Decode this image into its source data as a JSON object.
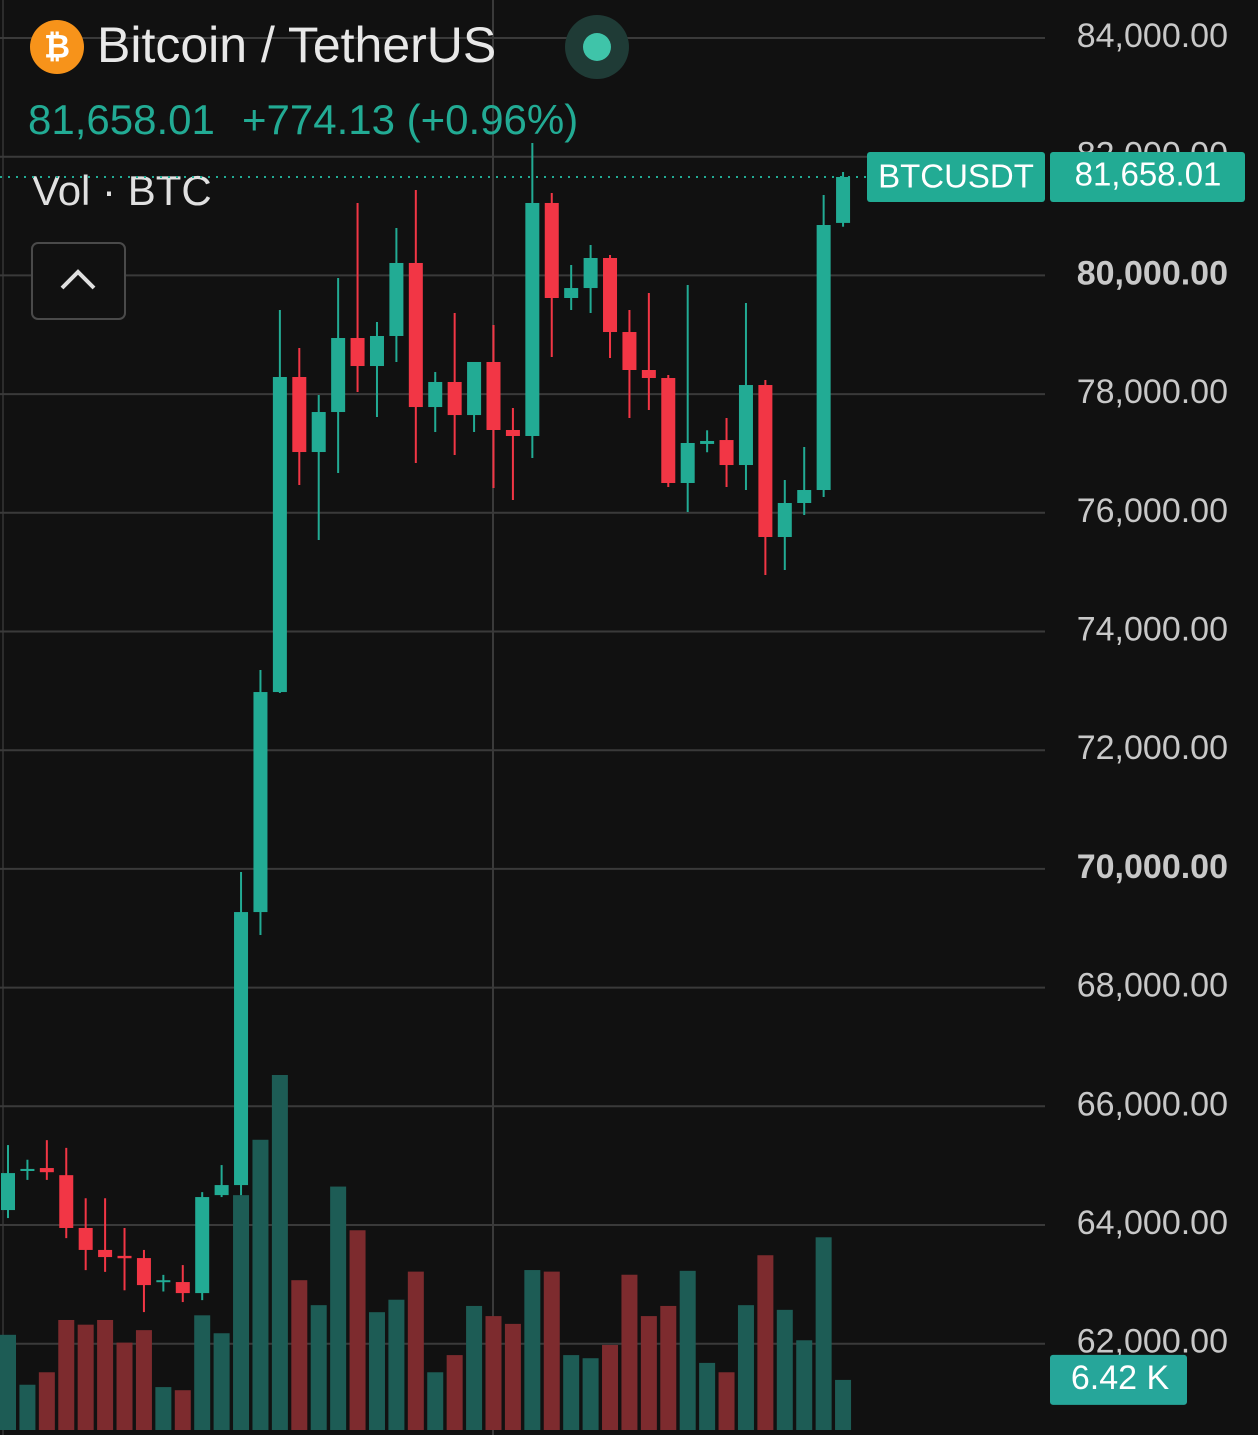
{
  "chart_data": {
    "type": "candlestick",
    "title": "Bitcoin / TetherUS",
    "last": {
      "value": 81658.01,
      "label": "81,658.01"
    },
    "change": "+774.13 (+0.96%)",
    "volume_title": "Vol · BTC",
    "symbol": "BTCUSDT",
    "up_color": "#22ab94",
    "down_color": "#f23645",
    "ylim": [
      60462,
      84640
    ],
    "yticks": [
      {
        "value": 62000,
        "label": "62,000.00"
      },
      {
        "value": 64000,
        "label": "64,000.00"
      },
      {
        "value": 66000,
        "label": "66,000.00"
      },
      {
        "value": 68000,
        "label": "68,000.00"
      },
      {
        "value": 70000,
        "label": "70,000.00"
      },
      {
        "value": 72000,
        "label": "72,000.00"
      },
      {
        "value": 74000,
        "label": "74,000.00"
      },
      {
        "value": 76000,
        "label": "76,000.00"
      },
      {
        "value": 78000,
        "label": "78,000.00"
      },
      {
        "value": 80000,
        "label": "80,000.00"
      },
      {
        "value": 82000,
        "label": "82,000.00"
      },
      {
        "value": 84000,
        "label": "84,000.00"
      }
    ],
    "grid": true,
    "open": [
      64252,
      64910,
      64960,
      64840,
      63950,
      63580,
      63480,
      63443,
      63040,
      63039,
      62853,
      64504,
      64673,
      69273,
      72980,
      78288,
      77024,
      77698,
      78945,
      78473,
      78979,
      80209,
      77782,
      78204,
      77647,
      78541,
      77395,
      77294,
      81220,
      79619,
      79787,
      80293,
      79046,
      78406,
      78271,
      76502,
      77160,
      77226,
      76805,
      78153,
      75592,
      76165,
      76384,
      80884
    ],
    "high": [
      65347,
      65100,
      65430,
      65300,
      64450,
      64450,
      63950,
      63580,
      63160,
      63325,
      64555,
      65010,
      69947,
      73351,
      79417,
      78776,
      77985,
      79956,
      81220,
      79215,
      80798,
      81439,
      78372,
      79366,
      78541,
      79164,
      77766,
      82231,
      81388,
      80175,
      80512,
      80344,
      79417,
      79703,
      78322,
      79838,
      77390,
      77597,
      79535,
      78237,
      76552,
      77108,
      81355,
      81742
    ],
    "low": [
      64117,
      64760,
      64760,
      63780,
      63240,
      63210,
      62900,
      62533,
      62880,
      62702,
      62735,
      64471,
      64504,
      68886,
      72963,
      76468,
      75541,
      76670,
      78035,
      77614,
      78541,
      76839,
      77361,
      76974,
      77361,
      76418,
      76215,
      76923,
      78625,
      79417,
      79366,
      78608,
      77597,
      77732,
      76434,
      76013,
      77020,
      76434,
      76384,
      74952,
      75036,
      75962,
      76266,
      80820
    ],
    "close": [
      64875,
      64945,
      64890,
      63950,
      63580,
      63460,
      63440,
      62988,
      63070,
      62853,
      64471,
      64673,
      69273,
      72980,
      78288,
      77024,
      77698,
      78945,
      78473,
      78979,
      80209,
      77782,
      78204,
      77647,
      78541,
      77395,
      77294,
      81220,
      79619,
      79787,
      80293,
      79046,
      78406,
      78271,
      76502,
      77176,
      77210,
      76805,
      78153,
      75592,
      76165,
      76384,
      80849,
      81658.01
    ],
    "volume": {
      "values": [
        12.2,
        5.8,
        7.4,
        14.1,
        13.5,
        14.1,
        11.2,
        12.8,
        5.5,
        5.1,
        14.7,
        12.4,
        30.1,
        37.2,
        45.5,
        19.2,
        16.0,
        31.2,
        25.6,
        15.1,
        16.7,
        20.3,
        7.4,
        9.6,
        15.9,
        14.6,
        13.6,
        20.5,
        20.3,
        9.6,
        9.2,
        10.9,
        19.9,
        14.6,
        15.9,
        20.4,
        8.6,
        7.4,
        16.0,
        22.4,
        15.4,
        11.5,
        24.7,
        6.42
      ],
      "last_label": "6.42 K",
      "up_color": "#1d5c55",
      "down_color": "#7d2b2e"
    }
  }
}
